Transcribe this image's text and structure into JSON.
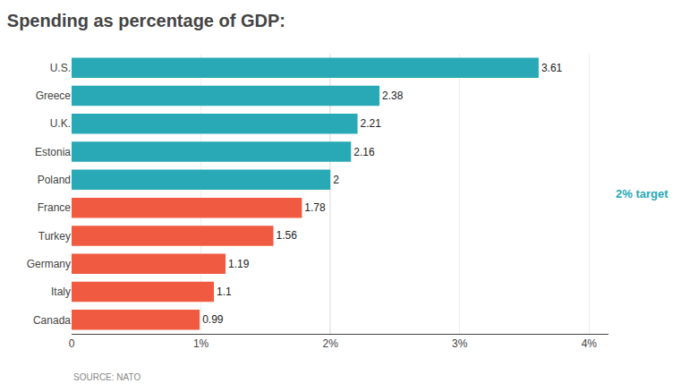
{
  "chart_data": {
    "type": "bar",
    "orientation": "horizontal",
    "title": "Spending as percentage of GDP:",
    "source": "SOURCE: NATO",
    "categories": [
      "Canada",
      "Italy",
      "Germany",
      "Turkey",
      "France",
      "Poland",
      "Estonia",
      "U.K.",
      "Greece",
      "U.S."
    ],
    "values": [
      0.99,
      1.1,
      1.19,
      1.56,
      1.78,
      2,
      2.16,
      2.21,
      2.38,
      3.61
    ],
    "colors": [
      "#f05a40",
      "#f05a40",
      "#f05a40",
      "#f05a40",
      "#f05a40",
      "#28a9b5",
      "#28a9b5",
      "#28a9b5",
      "#28a9b5",
      "#28a9b5"
    ],
    "data_labels": true,
    "xlim": [
      0,
      4.15
    ],
    "xticks": [
      0,
      {
        "value": 1,
        "label": "1%"
      },
      {
        "value": 2,
        "label": "2%"
      },
      {
        "value": 3,
        "label": "3%"
      },
      {
        "value": 4,
        "label": "4%"
      }
    ],
    "grid": true,
    "target": {
      "value": 2,
      "label": "2% target",
      "color": "#28a9b5"
    }
  }
}
